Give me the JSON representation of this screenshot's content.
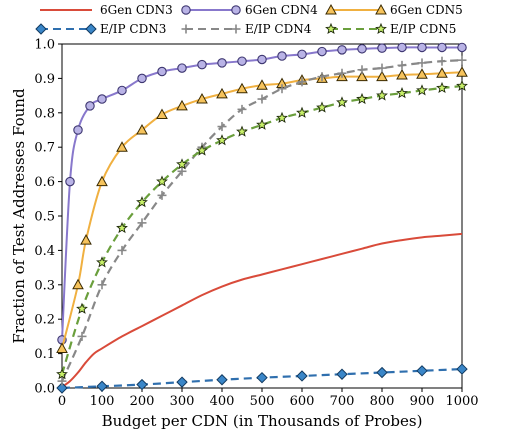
{
  "chart_data": {
    "type": "line",
    "title": "",
    "xlabel": "Budget per CDN (in Thousands of Probes)",
    "ylabel": "Fraction of Test Addresses Found",
    "xlim": [
      0,
      1000
    ],
    "ylim": [
      0.0,
      1.0
    ],
    "x_ticks": [
      "0",
      "100",
      "200",
      "300",
      "400",
      "500",
      "600",
      "700",
      "800",
      "900",
      "1000"
    ],
    "y_ticks": [
      "0.0",
      "0.1",
      "0.2",
      "0.3",
      "0.4",
      "0.5",
      "0.6",
      "0.7",
      "0.8",
      "0.9",
      "1.0"
    ],
    "grid": false,
    "legend_position": "top",
    "series": [
      {
        "name": "6Gen CDN3",
        "color": "#d94b3a",
        "marker": "none",
        "dash": "solid",
        "points": [
          [
            0,
            0.003
          ],
          [
            20,
            0.02
          ],
          [
            40,
            0.045
          ],
          [
            60,
            0.075
          ],
          [
            80,
            0.1
          ],
          [
            100,
            0.115
          ],
          [
            150,
            0.15
          ],
          [
            200,
            0.18
          ],
          [
            250,
            0.21
          ],
          [
            300,
            0.24
          ],
          [
            350,
            0.27
          ],
          [
            400,
            0.295
          ],
          [
            450,
            0.315
          ],
          [
            500,
            0.33
          ],
          [
            550,
            0.345
          ],
          [
            600,
            0.36
          ],
          [
            650,
            0.375
          ],
          [
            700,
            0.39
          ],
          [
            750,
            0.405
          ],
          [
            800,
            0.42
          ],
          [
            850,
            0.43
          ],
          [
            900,
            0.438
          ],
          [
            950,
            0.443
          ],
          [
            1000,
            0.448
          ]
        ]
      },
      {
        "name": "6Gen CDN4",
        "color": "#8878cc",
        "marker": "circle",
        "dash": "solid",
        "points": [
          [
            0,
            0.14
          ],
          [
            20,
            0.6
          ],
          [
            40,
            0.75
          ],
          [
            70,
            0.82
          ],
          [
            100,
            0.84
          ],
          [
            150,
            0.865
          ],
          [
            200,
            0.9
          ],
          [
            250,
            0.92
          ],
          [
            300,
            0.93
          ],
          [
            350,
            0.94
          ],
          [
            400,
            0.945
          ],
          [
            450,
            0.95
          ],
          [
            500,
            0.955
          ],
          [
            550,
            0.965
          ],
          [
            600,
            0.97
          ],
          [
            650,
            0.978
          ],
          [
            700,
            0.983
          ],
          [
            750,
            0.986
          ],
          [
            800,
            0.988
          ],
          [
            850,
            0.99
          ],
          [
            900,
            0.99
          ],
          [
            950,
            0.99
          ],
          [
            1000,
            0.99
          ]
        ]
      },
      {
        "name": "6Gen CDN5",
        "color": "#f0b040",
        "marker": "triangle",
        "dash": "solid",
        "points": [
          [
            0,
            0.115
          ],
          [
            40,
            0.3
          ],
          [
            60,
            0.43
          ],
          [
            100,
            0.6
          ],
          [
            150,
            0.7
          ],
          [
            200,
            0.75
          ],
          [
            250,
            0.795
          ],
          [
            300,
            0.82
          ],
          [
            350,
            0.84
          ],
          [
            400,
            0.855
          ],
          [
            450,
            0.87
          ],
          [
            500,
            0.88
          ],
          [
            550,
            0.885
          ],
          [
            600,
            0.895
          ],
          [
            650,
            0.9
          ],
          [
            700,
            0.905
          ],
          [
            750,
            0.905
          ],
          [
            800,
            0.905
          ],
          [
            850,
            0.91
          ],
          [
            900,
            0.912
          ],
          [
            950,
            0.915
          ],
          [
            1000,
            0.918
          ]
        ]
      },
      {
        "name": "E/IP CDN3",
        "color": "#2f6fae",
        "marker": "diamond",
        "dash": "dashed",
        "points": [
          [
            0,
            0.0
          ],
          [
            100,
            0.005
          ],
          [
            200,
            0.01
          ],
          [
            300,
            0.017
          ],
          [
            400,
            0.024
          ],
          [
            500,
            0.03
          ],
          [
            600,
            0.035
          ],
          [
            700,
            0.04
          ],
          [
            800,
            0.045
          ],
          [
            900,
            0.05
          ],
          [
            1000,
            0.055
          ]
        ]
      },
      {
        "name": "E/IP CDN4",
        "color": "#888888",
        "marker": "plus",
        "dash": "dashed",
        "points": [
          [
            0,
            0.02
          ],
          [
            50,
            0.15
          ],
          [
            100,
            0.3
          ],
          [
            150,
            0.4
          ],
          [
            200,
            0.48
          ],
          [
            250,
            0.56
          ],
          [
            300,
            0.63
          ],
          [
            350,
            0.7
          ],
          [
            400,
            0.76
          ],
          [
            450,
            0.81
          ],
          [
            500,
            0.84
          ],
          [
            550,
            0.87
          ],
          [
            600,
            0.89
          ],
          [
            650,
            0.905
          ],
          [
            700,
            0.915
          ],
          [
            750,
            0.925
          ],
          [
            800,
            0.93
          ],
          [
            850,
            0.938
          ],
          [
            900,
            0.945
          ],
          [
            950,
            0.95
          ],
          [
            1000,
            0.953
          ]
        ]
      },
      {
        "name": "E/IP CDN5",
        "color": "#6a9f3c",
        "marker": "star",
        "dash": "dashed",
        "points": [
          [
            0,
            0.04
          ],
          [
            50,
            0.23
          ],
          [
            100,
            0.365
          ],
          [
            150,
            0.465
          ],
          [
            200,
            0.54
          ],
          [
            250,
            0.6
          ],
          [
            300,
            0.65
          ],
          [
            350,
            0.69
          ],
          [
            400,
            0.72
          ],
          [
            450,
            0.745
          ],
          [
            500,
            0.765
          ],
          [
            550,
            0.785
          ],
          [
            600,
            0.8
          ],
          [
            650,
            0.815
          ],
          [
            700,
            0.83
          ],
          [
            750,
            0.84
          ],
          [
            800,
            0.85
          ],
          [
            850,
            0.857
          ],
          [
            900,
            0.865
          ],
          [
            950,
            0.872
          ],
          [
            1000,
            0.878
          ]
        ]
      }
    ]
  }
}
